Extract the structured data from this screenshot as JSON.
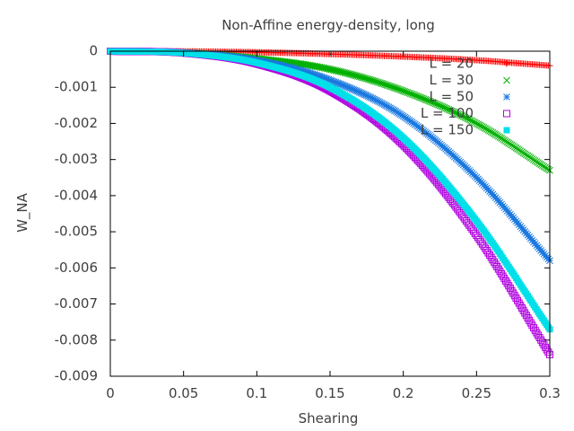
{
  "chart_data": {
    "type": "scatter",
    "title": "Non-Affine energy-density, long",
    "xlabel": "Shearing",
    "ylabel": "W_NA",
    "xlim": [
      0,
      0.3
    ],
    "ylim": [
      -0.009,
      0
    ],
    "x_ticks": [
      "0",
      "0.05",
      "0.1",
      "0.15",
      "0.2",
      "0.25",
      "0.3"
    ],
    "y_ticks": [
      "0",
      "-0.001",
      "-0.002",
      "-0.003",
      "-0.004",
      "-0.005",
      "-0.006",
      "-0.007",
      "-0.008",
      "-0.009"
    ],
    "grid": false,
    "legend_position": "top-right",
    "series": [
      {
        "name": "L = 20",
        "marker": "plus",
        "color": "#ff0000",
        "x": [
          0,
          0.05,
          0.1,
          0.15,
          0.2,
          0.25,
          0.3
        ],
        "y": [
          0,
          -5e-06,
          -3e-05,
          -8e-05,
          -0.00015,
          -0.00025,
          -0.0004
        ]
      },
      {
        "name": "L = 30",
        "marker": "cross",
        "color": "#00b000",
        "x": [
          0,
          0.05,
          0.1,
          0.15,
          0.2,
          0.25,
          0.3
        ],
        "y": [
          0,
          -3e-05,
          -0.0002,
          -0.0005,
          -0.0011,
          -0.002,
          -0.0033
        ]
      },
      {
        "name": "L = 50",
        "marker": "star",
        "color": "#1a78e0",
        "x": [
          0,
          0.05,
          0.1,
          0.15,
          0.2,
          0.25,
          0.3
        ],
        "y": [
          0,
          -4e-05,
          -0.00025,
          -0.0008,
          -0.0018,
          -0.0035,
          -0.0058
        ]
      },
      {
        "name": "L = 100",
        "marker": "square",
        "color": "#b000e0",
        "x": [
          0,
          0.05,
          0.1,
          0.15,
          0.2,
          0.25,
          0.3
        ],
        "y": [
          0,
          -5e-05,
          -0.00035,
          -0.0011,
          -0.0026,
          -0.0051,
          -0.0084
        ]
      },
      {
        "name": "L = 150",
        "marker": "filled-square",
        "color": "#00e0e8",
        "x": [
          0,
          0.05,
          0.1,
          0.15,
          0.2,
          0.25,
          0.3
        ],
        "y": [
          0,
          -5e-05,
          -0.00032,
          -0.001,
          -0.0024,
          -0.0047,
          -0.0077
        ]
      }
    ]
  }
}
